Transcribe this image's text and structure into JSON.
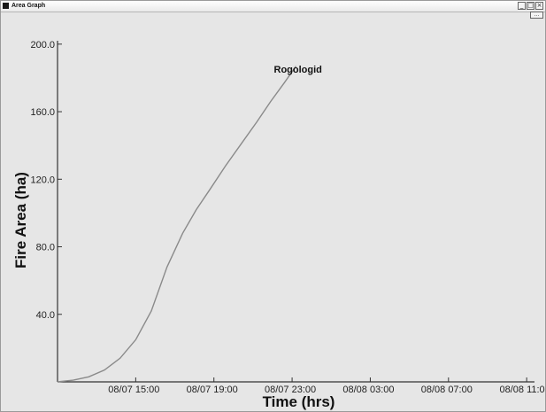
{
  "window": {
    "title": "Area Graph",
    "buttons": {
      "minimize": "_",
      "maximize": "□",
      "close": "×"
    },
    "sub_button": "…"
  },
  "chart_data": {
    "type": "line",
    "xlabel": "Time (hrs)",
    "ylabel": "Fire Area (ha)",
    "x_ticks": [
      {
        "label": "08/07 15:00",
        "hour": 15
      },
      {
        "label": "08/07 19:00",
        "hour": 19
      },
      {
        "label": "08/07 23:00",
        "hour": 23
      },
      {
        "label": "08/08 03:00",
        "hour": 27
      },
      {
        "label": "08/08 07:00",
        "hour": 31
      },
      {
        "label": "08/08 11:00",
        "hour": 35
      }
    ],
    "y_ticks": [
      {
        "label": "40.0",
        "value": 40
      },
      {
        "label": "80.0",
        "value": 80
      },
      {
        "label": "120.0",
        "value": 120
      },
      {
        "label": "160.0",
        "value": 160
      },
      {
        "label": "200.0",
        "value": 200
      }
    ],
    "xlim": [
      11,
      35.4
    ],
    "ylim": [
      0,
      202
    ],
    "series": [
      {
        "name": "Rogologid",
        "color": "#8a8a8a",
        "x": [
          11,
          11.8,
          12.6,
          13.4,
          14.2,
          15.0,
          15.8,
          16.6,
          17.4,
          18.1,
          18.8,
          19.6,
          20.4,
          21.2,
          21.9,
          22.6,
          23.2
        ],
        "y": [
          0,
          1,
          3,
          7,
          14,
          25,
          42,
          68,
          88,
          102,
          114,
          128,
          141,
          154,
          166,
          177,
          187
        ]
      }
    ],
    "annotation": {
      "text": "Rogologid",
      "x": 23.3,
      "y": 183
    },
    "grid": false,
    "legend": "none"
  }
}
